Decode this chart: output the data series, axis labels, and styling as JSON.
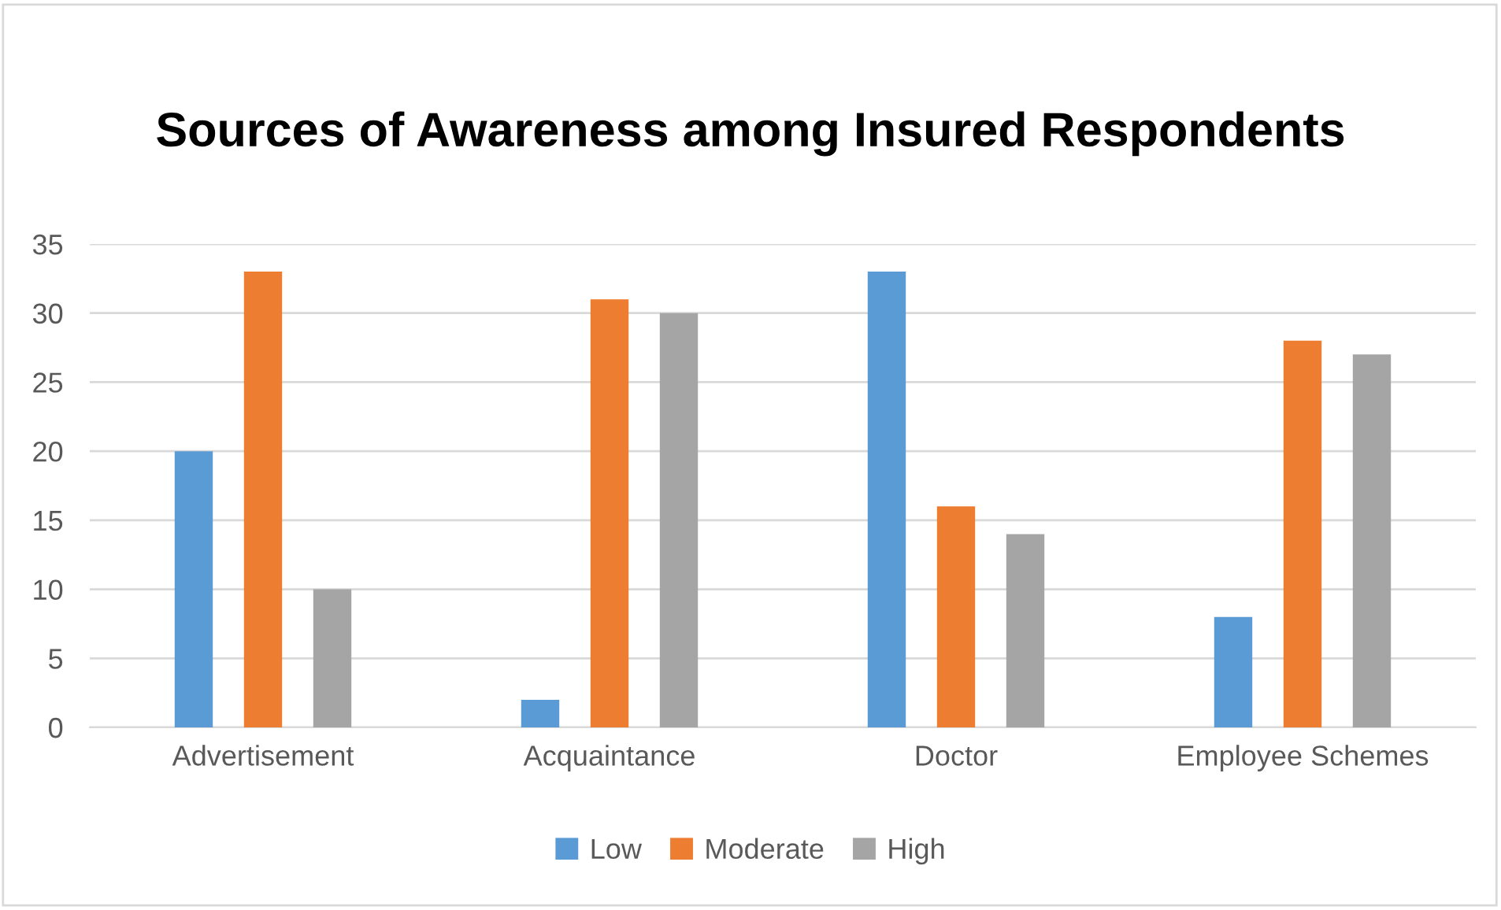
{
  "chart_data": {
    "type": "bar",
    "title": "Sources of Awareness among Insured Respondents",
    "categories": [
      "Advertisement",
      "Acquaintance",
      "Doctor",
      "Employee Schemes"
    ],
    "series": [
      {
        "name": "Low",
        "color": "#5b9bd5",
        "values": [
          20,
          2,
          33,
          8
        ]
      },
      {
        "name": "Moderate",
        "color": "#ed7d31",
        "values": [
          33,
          31,
          16,
          28
        ]
      },
      {
        "name": "High",
        "color": "#a5a5a5",
        "values": [
          10,
          30,
          14,
          27
        ]
      }
    ],
    "ylim": [
      0,
      35
    ],
    "yticks": [
      0,
      5,
      10,
      15,
      20,
      25,
      30,
      35
    ],
    "grid": "y",
    "legend": "bottom"
  }
}
